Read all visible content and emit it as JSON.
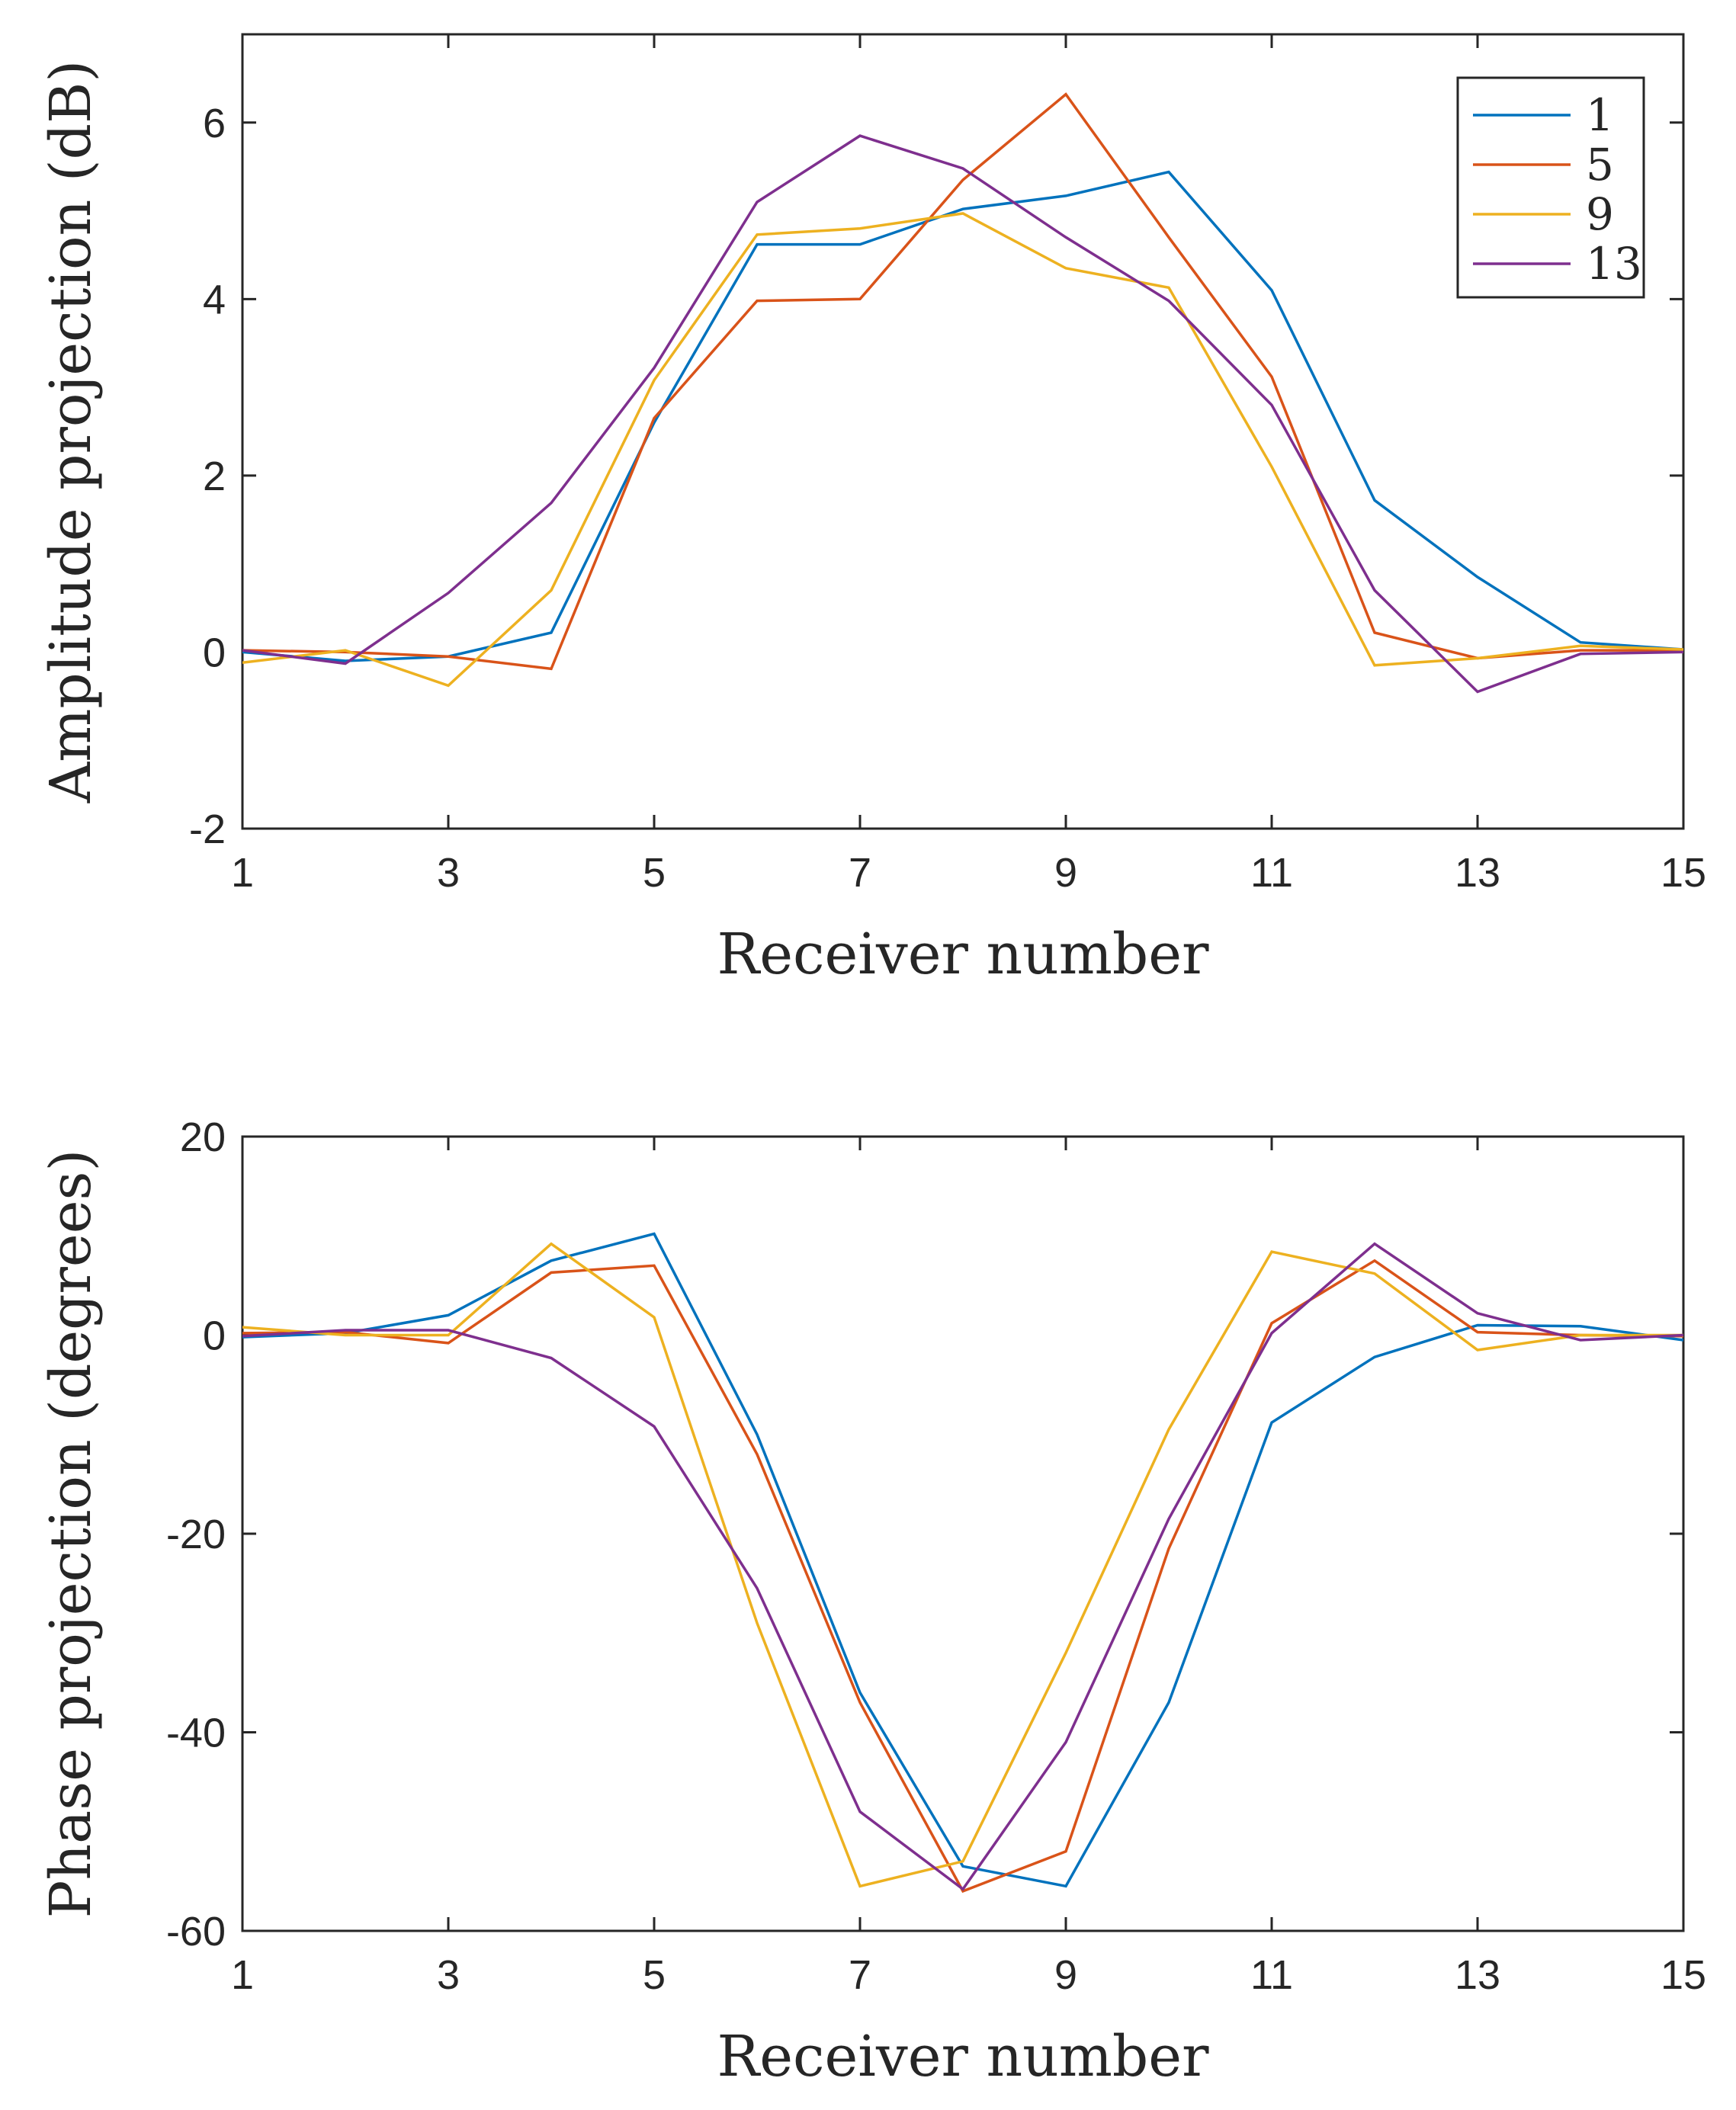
{
  "chart_data": [
    {
      "type": "line",
      "xlabel": "Receiver number",
      "ylabel": "Amplitude projection (dB)",
      "xlim": [
        1,
        15
      ],
      "ylim": [
        -2,
        7
      ],
      "xticks": [
        1,
        3,
        5,
        7,
        9,
        11,
        13,
        15
      ],
      "yticks": [
        -2,
        0,
        2,
        4,
        6
      ],
      "grid": false,
      "legend_position": "top-right",
      "x": [
        1,
        2,
        3,
        4,
        5,
        6,
        7,
        8,
        9,
        10,
        11,
        12,
        13,
        14,
        15
      ],
      "series": [
        {
          "name": "1",
          "color": "#0072BD",
          "values": [
            0.0,
            -0.1,
            -0.05,
            0.22,
            2.6,
            4.62,
            4.62,
            5.02,
            5.17,
            5.44,
            4.1,
            1.72,
            0.85,
            0.11,
            0.03
          ]
        },
        {
          "name": "5",
          "color": "#D95319",
          "values": [
            0.02,
            0.0,
            -0.05,
            -0.19,
            2.65,
            3.98,
            4.0,
            5.35,
            6.32,
            4.7,
            3.12,
            0.22,
            -0.07,
            0.02,
            0.02
          ]
        },
        {
          "name": "9",
          "color": "#EDB120",
          "values": [
            -0.12,
            0.02,
            -0.38,
            0.7,
            3.08,
            4.73,
            4.8,
            4.97,
            4.35,
            4.13,
            2.1,
            -0.15,
            -0.07,
            0.07,
            0.03
          ]
        },
        {
          "name": "13",
          "color": "#7E2F8E",
          "values": [
            0.02,
            -0.13,
            0.67,
            1.69,
            3.22,
            5.1,
            5.85,
            5.48,
            4.7,
            3.98,
            2.8,
            0.7,
            -0.45,
            -0.02,
            0.0
          ]
        }
      ]
    },
    {
      "type": "line",
      "xlabel": "Receiver number",
      "ylabel": "Phase projection (degrees)",
      "xlim": [
        1,
        15
      ],
      "ylim": [
        -60,
        20
      ],
      "xticks": [
        1,
        3,
        5,
        7,
        9,
        11,
        13,
        15
      ],
      "yticks": [
        -60,
        -40,
        -20,
        0,
        20
      ],
      "grid": false,
      "x": [
        1,
        2,
        3,
        4,
        5,
        6,
        7,
        8,
        9,
        10,
        11,
        12,
        13,
        14,
        15
      ],
      "series": [
        {
          "name": "1",
          "color": "#0072BD",
          "values": [
            -0.2,
            0.2,
            2.0,
            7.5,
            10.2,
            -10.0,
            -36.0,
            -53.5,
            -55.5,
            -37.0,
            -8.8,
            -2.2,
            1.0,
            0.9,
            -0.5
          ]
        },
        {
          "name": "5",
          "color": "#D95319",
          "values": [
            0.2,
            0.3,
            -0.8,
            6.3,
            7.0,
            -12.0,
            -37.0,
            -56.0,
            -52.0,
            -21.5,
            1.2,
            7.5,
            0.3,
            0.0,
            -0.1
          ]
        },
        {
          "name": "9",
          "color": "#EDB120",
          "values": [
            0.8,
            0.0,
            0.0,
            9.2,
            1.8,
            -29.0,
            -55.5,
            -53.0,
            -32.0,
            -9.5,
            8.4,
            6.2,
            -1.5,
            0.0,
            0.0
          ]
        },
        {
          "name": "13",
          "color": "#7E2F8E",
          "values": [
            -0.1,
            0.5,
            0.5,
            -2.3,
            -9.2,
            -25.5,
            -48.0,
            -55.8,
            -41.0,
            -18.5,
            0.2,
            9.2,
            2.2,
            -0.5,
            0.0
          ]
        }
      ]
    }
  ]
}
